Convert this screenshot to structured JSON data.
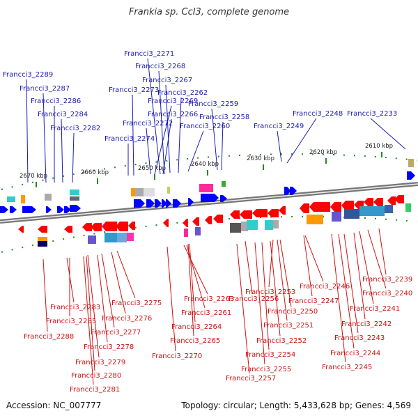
{
  "title": "Frankia sp. CcI3, complete genome",
  "accession_label": "Accession: NC_007777",
  "summary_label": "Topology: circular; Length: 5,433,628 bp; Genes: 4,569",
  "ruler_ticks": [
    "2670 kbp",
    "2660 kbp",
    "2650 kbp",
    "2640 kbp",
    "2630 kbp",
    "2620 kbp",
    "2610 kbp"
  ],
  "colors": {
    "forward": "#0000ff",
    "reverse": "#ff0000",
    "top_label": "#1a1ab4",
    "bottom_label": "#cc1111",
    "tick": "#228b22",
    "backbone": "#888888"
  },
  "top_genes": [
    "Francci3_2271",
    "Francci3_2268",
    "Francci3_2289",
    "Francci3_2267",
    "Francci3_2287",
    "Francci3_2273",
    "Francci3_2262",
    "Francci3_2286",
    "Francci3_2269",
    "Francci3_2259",
    "Francci3_2284",
    "Francci3_2266",
    "Francci3_2258",
    "Francci3_2248",
    "Francci3_2233",
    "Francci3_2272",
    "Francci3_2282",
    "Francci3_2260",
    "Francci3_2249",
    "Francci3_2274"
  ],
  "bottom_genes": [
    "Francci3_2239",
    "Francci3_2246",
    "Francci3_2240",
    "Francci3_2253",
    "Francci3_2263",
    "Francci3_2256",
    "Francci3_2247",
    "Francci3_2275",
    "Francci3_2241",
    "Francci3_2283",
    "Francci3_2261",
    "Francci3_2250",
    "Francci3_2276",
    "Francci3_2285",
    "Francci3_2242",
    "Francci3_2264",
    "Francci3_2251",
    "Francci3_2277",
    "Francci3_2243",
    "Francci3_2288",
    "Francci3_2265",
    "Francci3_2252",
    "Francci3_2278",
    "Francci3_2244",
    "Francci3_2254",
    "Francci3_2270",
    "Francci3_2279",
    "Francci3_2245",
    "Francci3_2255",
    "Francci3_2280",
    "Francci3_2257",
    "Francci3_2281"
  ]
}
